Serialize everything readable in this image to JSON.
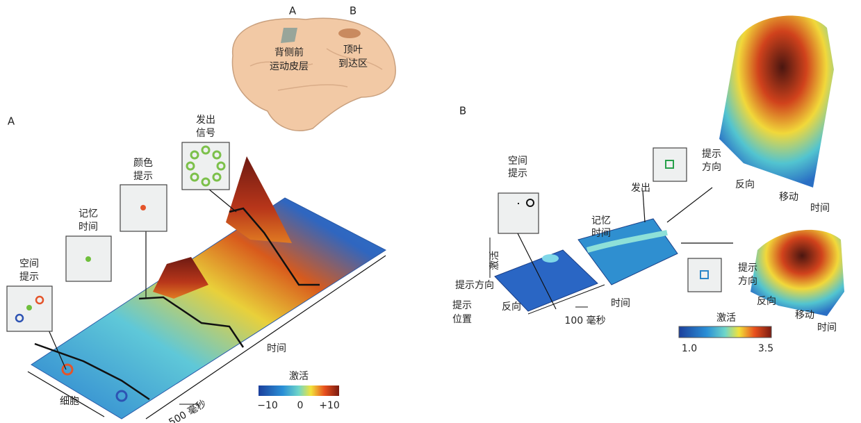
{
  "brain": {
    "label_a": "A",
    "label_b": "B",
    "region_a": [
      "背侧前",
      "运动皮层"
    ],
    "region_b": [
      "顶叶",
      "到达区"
    ]
  },
  "panel_a": {
    "label": "A",
    "stages": [
      [
        "空间",
        "提示"
      ],
      [
        "记忆",
        "时间"
      ],
      [
        "颜色",
        "提示"
      ],
      [
        "发出",
        "信号"
      ]
    ],
    "axis_cells": "细胞",
    "axis_time": "时间",
    "scale": "500 毫秒",
    "colorbar": {
      "title": "激活",
      "ticks": [
        "−10",
        "0",
        "+10"
      ]
    }
  },
  "panel_b": {
    "label": "B",
    "cue": [
      "空间",
      "提示"
    ],
    "memory": [
      "记忆",
      "时间"
    ],
    "go": "发出",
    "axis_activation": "激活",
    "axis_direction": "提示方向",
    "axis_location": [
      "提示",
      "位置"
    ],
    "opposite": "反向",
    "scale": "100 毫秒",
    "axis_time": "时间",
    "top": {
      "direction": [
        "提示",
        "方向"
      ],
      "opposite": "反向",
      "movement": "移动",
      "time": "时间"
    },
    "bottom": {
      "direction": [
        "提示",
        "方向"
      ],
      "opposite": "反向",
      "movement": "移动",
      "time": "时间"
    },
    "colorbar": {
      "title": "激活",
      "ticks": [
        "1.0",
        "3.5"
      ]
    }
  }
}
